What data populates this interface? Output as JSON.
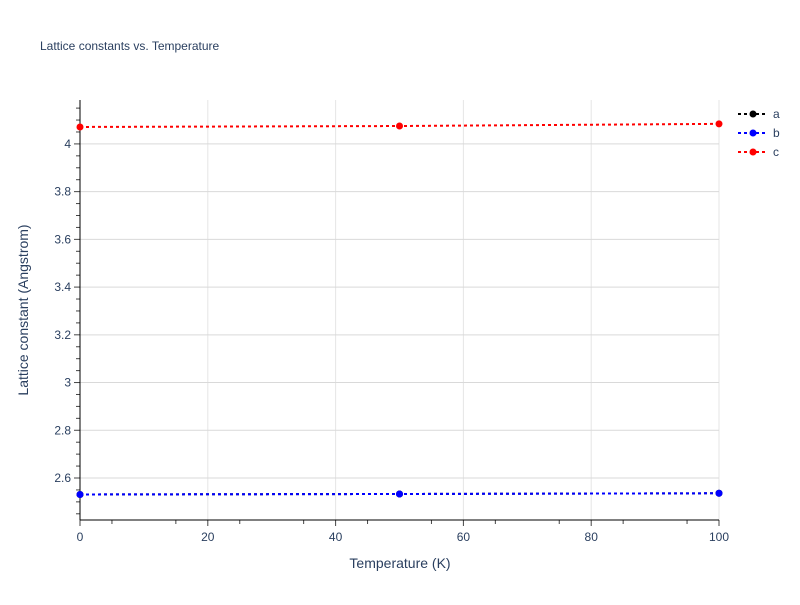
{
  "chart_data": {
    "type": "line",
    "title": "Lattice constants vs. Temperature",
    "xlabel": "Temperature (K)",
    "ylabel": "Lattice constant (Angstrom)",
    "xlim": [
      0,
      100
    ],
    "ylim": [
      2.424,
      4.184
    ],
    "xticks": [
      0,
      20,
      40,
      60,
      80,
      100
    ],
    "yticks": [
      2.6,
      2.8,
      3,
      3.2,
      3.4,
      3.6,
      3.8,
      4
    ],
    "grid": true,
    "legend_position": "top-right",
    "x": [
      0,
      50,
      100
    ],
    "series": [
      {
        "name": "a",
        "color": "#000000",
        "values": [
          2.531,
          2.533,
          2.536
        ]
      },
      {
        "name": "b",
        "color": "#0000ff",
        "values": [
          2.531,
          2.533,
          2.536
        ]
      },
      {
        "name": "c",
        "color": "#ff0000",
        "values": [
          4.071,
          4.075,
          4.084
        ]
      }
    ]
  }
}
